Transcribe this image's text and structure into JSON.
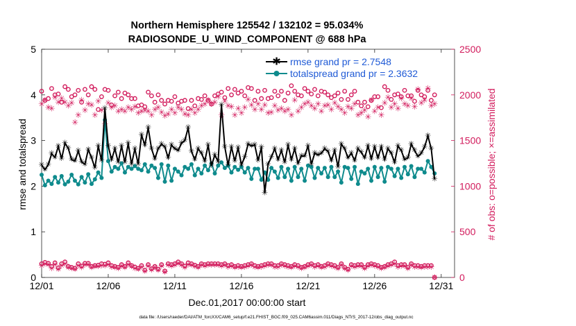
{
  "chart_data": {
    "type": "line",
    "title_line1": "Northern Hemisphere 125542 / 132102 = 95.034%",
    "title_line2": "RADIOSONDE_U_WIND_COMPONENT @ 688 hPa",
    "xlabel": "Dec.01,2017 00:00:00 start",
    "ylabel_left": "rmse and totalspread",
    "ylabel_right": "# of obs: o=possible; ×=assimilated",
    "footnote": "data file: /Users/raeder/DAI/ATM_forcXX/CAM6_setup/f.e21.FHIST_BGC.f09_025.CAM6assim.011/Diags_NTrS_2017-12/obs_diag_output.nc",
    "xlim": [
      0,
      31
    ],
    "ylim_left": [
      0,
      5
    ],
    "ylim_right": [
      0,
      2500
    ],
    "x_ticks": [
      0,
      5,
      10,
      15,
      20,
      25,
      30
    ],
    "x_tick_labels": [
      "12/01",
      "12/06",
      "12/11",
      "12/16",
      "12/21",
      "12/26",
      "12/31"
    ],
    "y_left_ticks": [
      "0",
      "1",
      "2",
      "3",
      "4",
      "5"
    ],
    "y_right_ticks": [
      "0",
      "500",
      "1000",
      "1500",
      "2000",
      "2500"
    ],
    "colors": {
      "rmse": "#000000",
      "spread": "#0f8b8d",
      "obs": "#d21b5c"
    },
    "series": [
      {
        "name": "rmse grand pr = 2.7548",
        "x_start": 0,
        "dx": 0.25,
        "values": [
          2.46,
          2.36,
          2.47,
          2.71,
          2.63,
          2.87,
          2.6,
          2.94,
          2.83,
          2.58,
          2.55,
          2.77,
          2.53,
          2.48,
          2.8,
          2.62,
          2.4,
          2.88,
          2.56,
          3.7,
          2.88,
          2.58,
          2.82,
          2.52,
          2.88,
          2.52,
          2.94,
          2.48,
          2.82,
          2.48,
          3.12,
          2.9,
          3.28,
          2.82,
          2.6,
          2.82,
          2.92,
          2.86,
          2.62,
          2.9,
          2.82,
          2.78,
          2.94,
          3.0,
          3.28,
          2.76,
          2.58,
          2.82,
          2.72,
          2.55,
          2.9,
          2.45,
          2.68,
          2.54,
          3.78,
          2.86,
          2.46,
          2.86,
          2.55,
          2.84,
          2.47,
          2.64,
          2.92,
          2.88,
          2.9,
          2.56,
          2.85,
          1.85,
          2.48,
          2.64,
          2.82,
          2.58,
          2.78,
          2.52,
          2.9,
          2.58,
          2.82,
          2.5,
          2.66,
          2.66,
          2.88,
          2.48,
          2.72,
          2.68,
          2.72,
          2.82,
          2.76,
          2.56,
          2.78,
          2.42,
          2.92,
          2.82,
          2.62,
          2.72,
          2.56,
          2.82,
          2.74,
          2.62,
          2.88,
          2.6,
          2.86,
          2.62,
          2.86,
          2.58,
          2.82,
          2.72,
          2.52,
          2.88,
          2.78,
          2.58,
          2.62,
          2.92,
          2.78,
          2.65,
          2.72,
          2.86,
          3.1,
          2.82,
          2.15
        ]
      },
      {
        "name": "totalspread grand pr = 2.3632",
        "x_start": 0,
        "dx": 0.25,
        "values": [
          2.25,
          2.02,
          2.12,
          2.05,
          2.2,
          2.08,
          2.22,
          2.04,
          2.1,
          2.25,
          2.12,
          2.04,
          2.2,
          2.08,
          2.26,
          2.05,
          2.15,
          2.3,
          2.18,
          3.45,
          2.55,
          2.32,
          2.42,
          2.38,
          2.5,
          2.3,
          2.42,
          2.38,
          2.44,
          2.38,
          2.35,
          2.48,
          2.32,
          2.45,
          2.4,
          2.18,
          2.48,
          2.1,
          2.45,
          2.12,
          2.38,
          2.32,
          2.24,
          2.42,
          2.38,
          2.48,
          2.24,
          2.38,
          2.28,
          2.45,
          2.35,
          2.5,
          2.28,
          2.45,
          2.52,
          2.4,
          2.45,
          2.3,
          2.42,
          2.36,
          2.42,
          2.3,
          2.4,
          2.16,
          2.38,
          2.38,
          2.14,
          2.3,
          2.14,
          2.4,
          2.32,
          2.18,
          2.42,
          2.2,
          2.38,
          2.12,
          2.42,
          2.2,
          2.38,
          2.12,
          2.45,
          2.42,
          2.18,
          2.4,
          2.28,
          2.4,
          2.2,
          2.42,
          2.2,
          2.32,
          2.08,
          2.42,
          2.4,
          2.16,
          2.42,
          2.05,
          2.32,
          2.28,
          2.38,
          2.12,
          2.42,
          2.2,
          2.4,
          2.1,
          2.42,
          2.38,
          2.22,
          2.38,
          2.18,
          2.42,
          2.26,
          2.44,
          2.2,
          2.38,
          2.38,
          2.3,
          2.55,
          2.42,
          2.28
        ]
      }
    ],
    "obs_possible": {
      "x_start": 0,
      "dx": 0.25,
      "values": [
        2040,
        1940,
        1960,
        2070,
        2000,
        2010,
        1920,
        2090,
        2060,
        1980,
        2000,
        2050,
        1920,
        2060,
        2000,
        2090,
        2060,
        1840,
        1980,
        2060,
        2050,
        1890,
        1990,
        2030,
        1960,
        2020,
        2000,
        1960,
        1960,
        1880,
        1890,
        1870,
        2030,
        1990,
        1920,
        2000,
        1940,
        1900,
        1940,
        1930,
        1980,
        1910,
        1930,
        1940,
        1850,
        1940,
        1880,
        1960,
        1950,
        1990,
        1940,
        1900,
        1990,
        2010,
        2030,
        1970,
        2070,
        2000,
        2060,
        2020,
        2040,
        1990,
        2080,
        2070,
        1940,
        2040,
        1960,
        2050,
        1960,
        1970,
        2040,
        1990,
        2040,
        1940,
        2020,
        2100,
        2040,
        2000,
        1990,
        2070,
        2040,
        2010,
        2060,
        1990,
        2040,
        2030,
        2000,
        1970,
        1990,
        2020,
        1950,
        2040,
        1950,
        2000,
        2040,
        1920,
        1880,
        1920,
        1870,
        1940,
        1980,
        1980,
        1860,
        2090,
        2050,
        1950,
        2000,
        2010,
        1980,
        2050,
        1990,
        1990,
        1930,
        2050,
        2000,
        1980,
        2050,
        1940,
        2000
      ]
    },
    "obs_assimilated": {
      "x_start": 0,
      "dx": 0.25,
      "values": [
        1900,
        1940,
        1860,
        1850,
        1970,
        1920,
        1960,
        1920,
        1880,
        1910,
        1700,
        1780,
        1940,
        1830,
        1900,
        1890,
        1780,
        1930,
        1830,
        1680,
        1910,
        1860,
        1880,
        1820,
        1840,
        1820,
        1860,
        1840,
        1870,
        1800,
        1820,
        1830,
        1820,
        1780,
        1840,
        1860,
        1810,
        1770,
        1790,
        1840,
        1800,
        1860,
        1840,
        1790,
        1780,
        1840,
        1800,
        1840,
        1880,
        1900,
        1940,
        1900,
        1920,
        1980,
        1780,
        1930,
        1880,
        1870,
        1780,
        1850,
        1800,
        1860,
        1950,
        1890,
        1840,
        1900,
        1840,
        1890,
        1800,
        1810,
        1880,
        1830,
        1850,
        1820,
        1840,
        1780,
        1940,
        1820,
        1860,
        1900,
        1920,
        1880,
        1850,
        1900,
        1820,
        1880,
        1890,
        1840,
        1910,
        1870,
        1840,
        1800,
        1870,
        1850,
        1900,
        1780,
        1800,
        1830,
        1760,
        1940,
        1820,
        1860,
        1780,
        1910,
        1970,
        1860,
        1900,
        1850,
        1960,
        1900,
        1880,
        1960,
        1870,
        2060,
        1910,
        1940,
        2070,
        1880,
        1900
      ]
    },
    "obs_possible_low": {
      "x_start": 0,
      "dx": 0.25,
      "values": [
        150,
        165,
        155,
        120,
        160,
        105,
        150,
        170,
        120,
        110,
        100,
        150,
        125,
        155,
        155,
        120,
        130,
        135,
        150,
        145,
        160,
        130,
        120,
        110,
        140,
        120,
        160,
        130,
        115,
        100,
        130,
        80,
        140,
        95,
        120,
        90,
        140,
        70,
        150,
        140,
        150,
        170,
        150,
        125,
        160,
        150,
        135,
        120,
        150,
        140,
        150,
        150,
        150,
        150,
        140,
        150,
        130,
        140,
        120,
        130,
        120,
        130,
        140,
        150,
        130,
        120,
        130,
        140,
        150,
        150,
        130,
        130,
        150,
        140,
        130,
        120,
        140,
        130,
        110,
        120,
        140,
        150,
        130,
        140,
        120,
        130,
        150,
        140,
        130,
        110,
        150,
        110,
        90,
        140,
        130,
        140,
        140,
        110,
        140,
        150,
        140,
        130,
        110,
        120,
        140,
        150,
        170,
        130,
        140,
        140,
        110,
        150,
        130,
        130,
        120,
        130,
        130,
        130,
        0
      ]
    },
    "obs_assimilated_low": {
      "x_start": 0,
      "dx": 0.25,
      "values": [
        130,
        150,
        140,
        100,
        140,
        90,
        130,
        150,
        110,
        100,
        90,
        130,
        110,
        140,
        140,
        110,
        120,
        120,
        130,
        130,
        140,
        115,
        110,
        100,
        125,
        110,
        140,
        120,
        100,
        90,
        115,
        70,
        125,
        85,
        110,
        80,
        125,
        60,
        135,
        125,
        135,
        155,
        135,
        110,
        140,
        135,
        120,
        110,
        135,
        125,
        135,
        135,
        135,
        135,
        125,
        135,
        115,
        125,
        110,
        115,
        110,
        115,
        125,
        135,
        115,
        110,
        115,
        125,
        135,
        135,
        115,
        115,
        135,
        125,
        115,
        110,
        125,
        115,
        100,
        110,
        125,
        135,
        115,
        125,
        110,
        115,
        135,
        125,
        115,
        100,
        135,
        100,
        80,
        125,
        115,
        125,
        125,
        100,
        125,
        135,
        125,
        115,
        100,
        110,
        125,
        135,
        150,
        115,
        125,
        125,
        100,
        135,
        115,
        115,
        110,
        115,
        115,
        115,
        0
      ]
    }
  }
}
